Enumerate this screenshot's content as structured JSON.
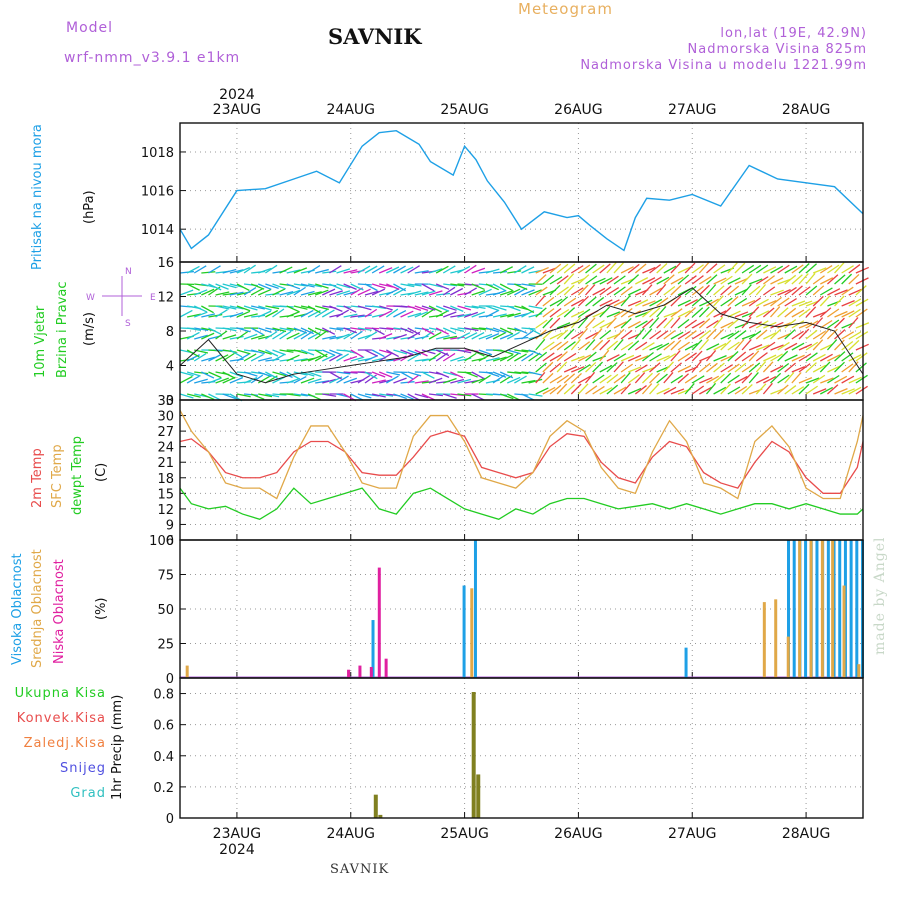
{
  "header": {
    "model_label": "Model",
    "model_name": "wrf-nmm_v3.9.1 e1km",
    "title": "SAVNIK",
    "meteogram": "Meteogram",
    "lonlat": "lon,lat (19E, 42.9N)",
    "elevation": "Nadmorska Visina 825m",
    "model_elevation": "Nadmorska Visina u modelu 1221.99m"
  },
  "footer": {
    "station": "SAVNIK"
  },
  "watermark": "made by Angel",
  "colors": {
    "pressure": "#1ea0e6",
    "temp2m": "#e84c4c",
    "sfc_temp": "#e0a848",
    "dewpt": "#22cc22",
    "high_cloud": "#1ea0e6",
    "mid_cloud": "#e0a848",
    "low_cloud": "#e020a0",
    "precip_total": "#808020",
    "label_magenta": "#b060d8"
  },
  "time_axis": {
    "year": "2024",
    "days": [
      "23AUG",
      "24AUG",
      "25AUG",
      "26AUG",
      "27AUG",
      "28AUG"
    ]
  },
  "chart_data": [
    {
      "type": "line",
      "id": "pressure",
      "ylabel": "Pritisak na nivou mora",
      "unit": "(hPa)",
      "ylim": [
        1012.3,
        1019.5
      ],
      "yticks": [
        1014,
        1016,
        1018
      ],
      "x": [
        0,
        0.1,
        0.25,
        0.5,
        0.75,
        1.0,
        1.2,
        1.4,
        1.6,
        1.75,
        1.9,
        2.1,
        2.2,
        2.4,
        2.5,
        2.6,
        2.7,
        2.85,
        3.0,
        3.2,
        3.4,
        3.5,
        3.6,
        3.75,
        3.9,
        4.0,
        4.1,
        4.3,
        4.5,
        4.75,
        5.0,
        5.25,
        5.5,
        5.75,
        6.0
      ],
      "values": [
        1014.0,
        1013.0,
        1013.7,
        1016.0,
        1016.1,
        1016.6,
        1017.0,
        1016.4,
        1018.3,
        1019.0,
        1019.1,
        1018.4,
        1017.5,
        1016.8,
        1018.3,
        1017.6,
        1016.5,
        1015.4,
        1014.0,
        1014.9,
        1014.6,
        1014.7,
        1014.2,
        1013.5,
        1012.9,
        1014.6,
        1015.6,
        1015.5,
        1015.8,
        1015.2,
        1017.3,
        1016.6,
        1016.4,
        1016.2,
        1014.8
      ],
      "series_color": "#1ea0e6"
    },
    {
      "type": "line",
      "id": "wind",
      "ylabel": "10m Vjetar Brzina i Pravac",
      "unit": "(m/s)",
      "ylim": [
        0,
        16
      ],
      "yticks": [
        0,
        4,
        8,
        12,
        16
      ],
      "direction_legend": {
        "w": "W",
        "e": "E",
        "n": "N",
        "s": "S"
      },
      "x": [
        0,
        0.25,
        0.5,
        0.75,
        1.0,
        1.25,
        1.5,
        1.75,
        2.0,
        2.25,
        2.5,
        2.75,
        3.0,
        3.25,
        3.5,
        3.75,
        4.0,
        4.25,
        4.5,
        4.75,
        5.0,
        5.25,
        5.5,
        5.75,
        6.0
      ],
      "values": [
        4,
        7,
        3,
        2,
        3,
        3.5,
        4,
        4.5,
        5,
        6,
        6,
        5,
        6.5,
        8,
        9,
        11,
        10,
        11,
        13,
        10,
        9,
        8.5,
        9,
        8,
        3
      ]
    },
    {
      "type": "line",
      "id": "temperature",
      "ylabel": "2m Temp",
      "unit": "(C)",
      "ylim": [
        6,
        33
      ],
      "yticks": [
        6,
        9,
        12,
        15,
        18,
        21,
        24,
        27,
        30,
        33
      ],
      "x": [
        0,
        0.1,
        0.25,
        0.4,
        0.55,
        0.7,
        0.85,
        1.0,
        1.15,
        1.3,
        1.45,
        1.6,
        1.75,
        1.9,
        2.05,
        2.2,
        2.35,
        2.5,
        2.65,
        2.8,
        2.95,
        3.1,
        3.25,
        3.4,
        3.55,
        3.7,
        3.85,
        4.0,
        4.15,
        4.3,
        4.45,
        4.6,
        4.75,
        4.9,
        5.05,
        5.2,
        5.35,
        5.5,
        5.65,
        5.8,
        5.95,
        6.0
      ],
      "series": [
        {
          "name": "2m Temp",
          "color": "#e84c4c",
          "values": [
            25,
            25.5,
            23,
            19,
            18,
            18,
            19,
            23,
            25,
            25,
            23,
            19,
            18.5,
            18.5,
            22,
            26,
            27,
            26,
            20,
            19,
            18,
            19,
            24,
            26.5,
            26,
            21,
            18,
            17,
            22,
            25,
            24,
            19,
            17,
            16,
            21,
            25,
            23,
            18,
            15,
            15,
            20,
            25
          ]
        },
        {
          "name": "SFC Temp",
          "color": "#e0a848",
          "values": [
            31,
            27,
            23,
            17,
            16,
            16,
            14,
            22,
            28,
            28,
            23,
            17,
            16,
            16,
            26,
            30,
            30,
            25,
            18,
            17,
            16,
            19,
            26,
            29,
            27,
            20,
            16,
            15,
            23,
            29,
            25,
            17,
            16,
            14,
            25,
            28,
            24,
            16,
            14,
            14,
            25,
            30
          ]
        },
        {
          "name": "dewpt Temp",
          "color": "#22cc22",
          "values": [
            16,
            13,
            12,
            12.5,
            11,
            10,
            12,
            16,
            13,
            14,
            15,
            16,
            12,
            11,
            15,
            16,
            14,
            12,
            11,
            10,
            12,
            11,
            13,
            14,
            14,
            13,
            12,
            12.5,
            13,
            12,
            13,
            12,
            11,
            12,
            13,
            13,
            12,
            13,
            12,
            11,
            11,
            12
          ]
        }
      ],
      "legend": [
        "2m Temp",
        "SFC Temp",
        "dewpt Temp"
      ]
    },
    {
      "type": "bar",
      "id": "cloud",
      "unit": "(%)",
      "ylim": [
        0,
        100
      ],
      "yticks": [
        0,
        25,
        50,
        75,
        100
      ],
      "legend": [
        "Visoka Oblacnost",
        "Srednja Oblacnost",
        "Niska Oblacnost"
      ],
      "series": [
        {
          "name": "Visoka Oblacnost",
          "color": "#1ea0e6",
          "points": [
            [
              1.7,
              42
            ],
            [
              2.5,
              67
            ],
            [
              2.6,
              100
            ],
            [
              4.45,
              22
            ],
            [
              5.35,
              100
            ],
            [
              5.4,
              100
            ],
            [
              5.45,
              100
            ],
            [
              5.5,
              100
            ],
            [
              5.55,
              100
            ],
            [
              5.6,
              100
            ],
            [
              5.65,
              100
            ],
            [
              5.7,
              100
            ],
            [
              5.75,
              100
            ],
            [
              5.8,
              100
            ],
            [
              5.85,
              100
            ],
            [
              5.9,
              100
            ],
            [
              5.95,
              100
            ],
            [
              6.0,
              100
            ]
          ]
        },
        {
          "name": "Srednja Oblacnost",
          "color": "#e0a848",
          "points": [
            [
              0.05,
              9
            ],
            [
              2.55,
              65
            ],
            [
              5.12,
              55
            ],
            [
              5.22,
              57
            ],
            [
              5.33,
              30
            ],
            [
              5.43,
              100
            ],
            [
              5.53,
              100
            ],
            [
              5.63,
              100
            ],
            [
              5.72,
              100
            ],
            [
              5.82,
              67
            ],
            [
              5.95,
              10
            ]
          ]
        },
        {
          "name": "Niska Oblacnost",
          "color": "#e020a0",
          "points": [
            [
              1.45,
              6
            ],
            [
              1.55,
              9
            ],
            [
              1.65,
              8
            ],
            [
              1.72,
              80
            ],
            [
              1.78,
              14
            ]
          ]
        }
      ]
    },
    {
      "type": "bar",
      "id": "precip",
      "ylabel": "1hr Precip (mm)",
      "ylim": [
        0,
        0.9
      ],
      "yticks": [
        0,
        0.2,
        0.4,
        0.6,
        0.8
      ],
      "legend": [
        "Ukupna Kisa",
        "Konvek.Kisa",
        "Zaledj.Kisa",
        "Snijeg",
        "Grad"
      ],
      "legend_colors": [
        "#22cc22",
        "#e84c4c",
        "#f08040",
        "#5050e0",
        "#30c0c0"
      ],
      "series": [
        {
          "name": "Ukupna Kisa",
          "color": "#808020",
          "points": [
            [
              1.72,
              0.15
            ],
            [
              1.76,
              0.02
            ],
            [
              2.58,
              0.81
            ],
            [
              2.62,
              0.28
            ]
          ]
        }
      ]
    }
  ]
}
